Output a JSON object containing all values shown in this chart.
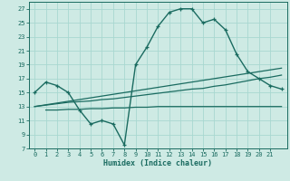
{
  "xlabel": "Humidex (Indice chaleur)",
  "bg_color": "#ceeae4",
  "grid_color": "#a8d8d0",
  "line_color": "#1a6b60",
  "xlim": [
    -0.5,
    22.5
  ],
  "ylim": [
    7,
    28
  ],
  "xticks": [
    0,
    1,
    2,
    3,
    4,
    5,
    6,
    7,
    8,
    9,
    10,
    11,
    12,
    13,
    14,
    15,
    16,
    17,
    18,
    19,
    20,
    21
  ],
  "yticks": [
    7,
    9,
    11,
    13,
    15,
    17,
    19,
    21,
    23,
    25,
    27
  ],
  "line1_x": [
    0,
    1,
    2,
    3,
    4,
    5,
    6,
    7,
    8,
    9,
    10,
    11,
    12,
    13,
    14,
    15,
    16,
    17,
    18,
    19,
    20,
    21,
    22
  ],
  "line1_y": [
    15,
    16.5,
    16,
    15,
    12.5,
    10.5,
    11,
    10.5,
    7.5,
    19,
    21.5,
    24.5,
    26.5,
    27,
    27,
    25,
    25.5,
    24,
    20.5,
    18,
    17,
    16,
    15.5
  ],
  "line2_x": [
    1,
    2,
    3,
    4,
    5,
    6,
    7,
    8,
    9,
    10,
    11,
    12,
    13,
    14,
    15,
    16,
    17,
    18,
    19,
    20,
    21,
    22
  ],
  "line2_y": [
    12.5,
    12.5,
    12.6,
    12.6,
    12.7,
    12.7,
    12.8,
    12.8,
    12.9,
    12.9,
    13.0,
    13.0,
    13.0,
    13.0,
    13.0,
    13.0,
    13.0,
    13.0,
    13.0,
    13.0,
    13.0,
    13.0
  ],
  "line3_x": [
    0,
    1,
    2,
    3,
    4,
    5,
    6,
    7,
    8,
    9,
    10,
    11,
    12,
    13,
    14,
    15,
    16,
    17,
    18,
    19,
    20,
    21,
    22
  ],
  "line3_y": [
    13.0,
    13.2,
    13.4,
    13.6,
    13.7,
    13.8,
    14.0,
    14.1,
    14.3,
    14.5,
    14.7,
    14.9,
    15.1,
    15.3,
    15.5,
    15.6,
    15.9,
    16.1,
    16.4,
    16.7,
    17.0,
    17.2,
    17.5
  ],
  "line4_x": [
    0,
    22
  ],
  "line4_y": [
    13.0,
    18.5
  ]
}
